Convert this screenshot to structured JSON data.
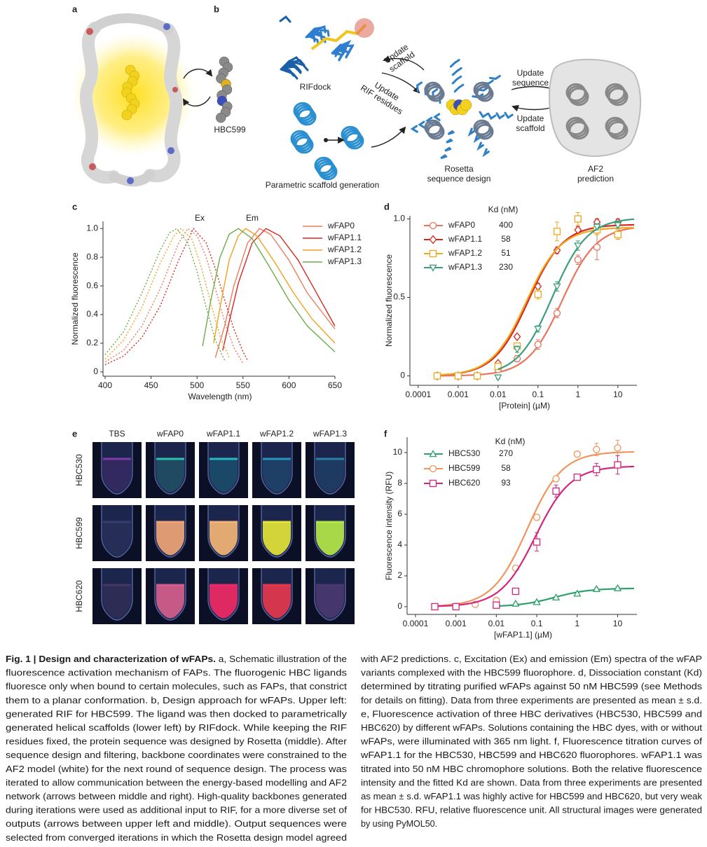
{
  "panels": {
    "a": {
      "label": "a",
      "ligand": "HBC599"
    },
    "b": {
      "label": "b",
      "rifdock": "RIFdock",
      "update_scaffold_left": [
        "Update",
        "scaffold"
      ],
      "update_rif": [
        "Update",
        "RIF residues"
      ],
      "parametric": "Parametric scaffold generation",
      "rosetta": [
        "Rosetta",
        "sequence design"
      ],
      "update_sequence": [
        "Update",
        "sequence"
      ],
      "update_scaffold_right": [
        "Update",
        "scaffold"
      ],
      "af2": [
        "AF2",
        "prediction"
      ]
    },
    "e": {
      "label": "e",
      "columns": [
        "TBS",
        "wFAP0",
        "wFAP1.1",
        "wFAP1.2",
        "wFAP1.3"
      ],
      "rows": [
        "HBC530",
        "HBC599",
        "HBC620"
      ],
      "tube_colors": [
        [
          "#8a3cb0",
          "#2fd0b8",
          "#22c8d0",
          "#2aa0c8",
          "#2a88b0"
        ],
        [
          "#3a4070",
          "#f4a878",
          "#f8b878",
          "#e8e838",
          "#b8ec48"
        ],
        [
          "#4a3a68",
          "#d8608e",
          "#f42a66",
          "#e8384e",
          "#4a3a70"
        ]
      ]
    }
  },
  "chart_data": [
    {
      "panel": "c",
      "type": "line",
      "xlabel": "Wavelength (nm)",
      "ylabel": "Normalized fluorescence",
      "annotations": [
        "Ex",
        "Em"
      ],
      "xlim": [
        400,
        650
      ],
      "xticks": [
        400,
        450,
        500,
        550,
        600,
        650
      ],
      "ylim": [
        -0.03,
        1.05
      ],
      "yticks": [
        0,
        0.2,
        0.4,
        0.6,
        0.8,
        {
          "value": 1,
          "label": "1.0"
        }
      ],
      "series": [
        {
          "name": "wFAP0",
          "color": "#ec7b60",
          "excitation": {
            "x": [
              400,
              420,
              440,
              460,
              480,
              490,
              500,
              510,
              520,
              530,
              540,
              550
            ],
            "values": [
              0.07,
              0.15,
              0.32,
              0.58,
              0.9,
              1.0,
              0.95,
              0.8,
              0.58,
              0.35,
              0.17,
              0.06
            ]
          },
          "emission": {
            "x": [
              520,
              530,
              540,
              555,
              568,
              580,
              600,
              620,
              650
            ],
            "values": [
              0.1,
              0.32,
              0.6,
              0.9,
              1.0,
              0.96,
              0.78,
              0.55,
              0.3
            ]
          }
        },
        {
          "name": "wFAP1.1",
          "color": "#d8281e",
          "excitation": {
            "x": [
              400,
              420,
              440,
              460,
              480,
              496,
              510,
              520,
              530,
              540,
              550,
              555
            ],
            "values": [
              0.05,
              0.11,
              0.24,
              0.46,
              0.78,
              1.0,
              0.9,
              0.72,
              0.5,
              0.3,
              0.14,
              0.08
            ]
          },
          "emission": {
            "x": [
              528,
              535,
              545,
              560,
              575,
              590,
              610,
              630,
              650
            ],
            "values": [
              0.15,
              0.35,
              0.62,
              0.9,
              1.0,
              0.95,
              0.78,
              0.55,
              0.32
            ]
          }
        },
        {
          "name": "wFAP1.2",
          "color": "#f2a11e",
          "excitation": {
            "x": [
              400,
              420,
              440,
              460,
              475,
              483,
              495,
              505,
              515,
              525,
              535
            ],
            "values": [
              0.09,
              0.22,
              0.45,
              0.76,
              0.95,
              1.0,
              0.92,
              0.72,
              0.48,
              0.25,
              0.1
            ]
          },
          "emission": {
            "x": [
              518,
              525,
              535,
              545,
              553,
              565,
              585,
              605,
              625,
              650
            ],
            "values": [
              0.2,
              0.45,
              0.78,
              0.95,
              1.0,
              0.95,
              0.76,
              0.55,
              0.37,
              0.2
            ]
          }
        },
        {
          "name": "wFAP1.3",
          "color": "#6aae4a",
          "excitation": {
            "x": [
              400,
              420,
              440,
              460,
              470,
              478,
              490,
              500,
              510,
              520,
              530
            ],
            "values": [
              0.12,
              0.28,
              0.55,
              0.85,
              0.97,
              1.0,
              0.9,
              0.7,
              0.45,
              0.22,
              0.08
            ]
          },
          "emission": {
            "x": [
              506,
              515,
              525,
              535,
              545,
              560,
              580,
              600,
              620,
              650
            ],
            "values": [
              0.18,
              0.5,
              0.8,
              0.96,
              1.0,
              0.93,
              0.72,
              0.5,
              0.32,
              0.14
            ]
          }
        }
      ]
    },
    {
      "panel": "d",
      "type": "scatter",
      "xlabel": "[Protein] (µM)",
      "ylabel": "Normalized fluorescence",
      "legend_title": "Kd (nM)",
      "log_x": true,
      "xlim": [
        7e-05,
        30
      ],
      "xticks": [
        0.0001,
        0.001,
        0.01,
        0.1,
        1,
        10
      ],
      "ylim": [
        -0.06,
        1.02
      ],
      "yticks": [
        0,
        0.5,
        {
          "value": 1,
          "label": "1.0"
        }
      ],
      "series": [
        {
          "name": "wFAP0",
          "color": "#e9735f",
          "marker": "circle",
          "kd": 400,
          "x": [
            0.0003,
            0.001,
            0.003,
            0.01,
            0.03,
            0.1,
            0.3,
            1,
            3,
            10
          ],
          "values": [
            0,
            0,
            0,
            0.04,
            0.11,
            0.2,
            0.4,
            0.74,
            0.82,
            0.9
          ],
          "errors": [
            0,
            0,
            0,
            0.01,
            0.02,
            0.03,
            0.03,
            0.03,
            0.08,
            0.03
          ]
        },
        {
          "name": "wFAP1.1",
          "color": "#d7261e",
          "marker": "diamond",
          "kd": 58,
          "x": [
            0.0003,
            0.001,
            0.003,
            0.01,
            0.03,
            0.1,
            0.3,
            1,
            3,
            10
          ],
          "values": [
            0,
            0,
            0,
            0.08,
            0.25,
            0.57,
            0.8,
            0.93,
            0.98,
            0.98
          ],
          "errors": [
            0,
            0,
            0,
            0.01,
            0.01,
            0.02,
            0.02,
            0.02,
            0.02,
            0.02
          ]
        },
        {
          "name": "wFAP1.2",
          "color": "#f0a81e",
          "marker": "square",
          "kd": 51,
          "x": [
            0.0003,
            0.001,
            0.003,
            0.01,
            0.03,
            0.1,
            0.3,
            1,
            3,
            10
          ],
          "values": [
            0,
            0,
            0,
            0.06,
            0.19,
            0.52,
            0.92,
            1.0,
            0.93,
            0.9
          ],
          "errors": [
            0,
            0,
            0,
            0.01,
            0.02,
            0.03,
            0.06,
            0.04,
            0.03,
            0.03
          ]
        },
        {
          "name": "wFAP1.3",
          "color": "#3f9e7a",
          "marker": "triangle-down",
          "kd": 230,
          "x": [
            0.01,
            0.03,
            0.1,
            0.3,
            1,
            3,
            10
          ],
          "values": [
            -0.01,
            0.17,
            0.3,
            0.57,
            0.83,
            0.95,
            0.96
          ],
          "errors": [
            0.01,
            0.02,
            0.02,
            0.03,
            0.03,
            0.02,
            0.02
          ]
        }
      ]
    },
    {
      "panel": "f",
      "type": "scatter",
      "xlabel": "[wFAP1.1] (µM)",
      "ylabel": "Fluorescence intensity (RFU)",
      "legend_title": "Kd (nM)",
      "log_x": true,
      "xlim": [
        7e-05,
        30
      ],
      "xticks": [
        0.0001,
        0.001,
        0.01,
        0.1,
        1,
        10
      ],
      "ylim": [
        -0.5,
        11
      ],
      "yticks": [
        0,
        2,
        4,
        6,
        8,
        10
      ],
      "series": [
        {
          "name": "HBC530",
          "color": "#2ea06a",
          "marker": "triangle-up",
          "kd": 270,
          "x": [
            0.01,
            0.03,
            0.1,
            0.3,
            1,
            3,
            10
          ],
          "values": [
            0.15,
            0.2,
            0.3,
            0.6,
            0.85,
            1.15,
            1.2
          ],
          "errors": [
            0.03,
            0.03,
            0.05,
            0.05,
            0.05,
            0.08,
            0.08
          ]
        },
        {
          "name": "HBC599",
          "color": "#f0955f",
          "marker": "circle",
          "kd": 58,
          "x": [
            0.0003,
            0.001,
            0.003,
            0.01,
            0.03,
            0.1,
            0.3,
            1,
            3,
            10
          ],
          "values": [
            0,
            0.03,
            0.15,
            0.4,
            2.5,
            5.8,
            8.3,
            9.9,
            10.2,
            10.3
          ],
          "errors": [
            0,
            0,
            0,
            0,
            0.05,
            0.2,
            0.2,
            0.1,
            0.4,
            0.5
          ]
        },
        {
          "name": "HBC620",
          "color": "#d3267d",
          "marker": "square",
          "kd": 93,
          "x": [
            0.0003,
            0.001,
            0.01,
            0.03,
            0.1,
            0.3,
            1,
            3,
            10
          ],
          "values": [
            0,
            0,
            0.1,
            1.0,
            4.2,
            7.5,
            8.4,
            8.9,
            9.2
          ],
          "errors": [
            0,
            0,
            0,
            0.1,
            0.6,
            0.4,
            0.15,
            0.4,
            0.6
          ]
        }
      ]
    }
  ],
  "caption": {
    "title": "Fig. 1 | Design and characterization of wFAPs.",
    "left": [
      " a, Schematic illustration of the",
      "fluorescence activation mechanism of FAPs. The fluorogenic HBC ligands",
      "fluoresce only when bound to certain molecules, such as FAPs, that constrict",
      "them to a planar conformation. b, Design approach for wFAPs. Upper left:",
      "generated RIF for HBC599. The ligand was then docked to parametrically",
      "generated helical scaffolds (lower left) by RIFdock. While keeping the RIF",
      "residues fixed, the protein sequence was designed by Rosetta (middle). After",
      "sequence design and filtering, backbone coordinates were constrained to the",
      "AF2 model (white) for the next round of sequence design. The process was",
      "iterated to allow communication between the energy-based modelling and AF2",
      "network (arrows between middle and right). High-quality backbones generated",
      "during iterations were used as additional input to RIF, for a more diverse set of",
      "outputs (arrows between upper left and middle). Output sequences were",
      "selected from converged iterations in which the Rosetta design model agreed"
    ],
    "right": [
      "with AF2 predictions. c, Excitation (Ex) and emission (Em) spectra of the wFAP",
      "variants complexed with the HBC599 fluorophore. d, Dissociation constant (Kd)",
      "determined by titrating purified wFAPs against 50 nM HBC599 (see Methods",
      "for details on fitting). Data from three experiments are presented as mean ± s.d.",
      "e, Fluorescence activation of three HBC derivatives (HBC530, HBC599 and",
      "HBC620) by different wFAPs. Solutions containing the HBC dyes, with or without",
      "wFAPs, were illuminated with 365 nm light. f, Fluorescence titration curves of",
      "wFAP1.1 for the HBC530, HBC599 and HBC620 fluorophores. wFAP1.1 was",
      "titrated into 50 nM HBC chromophore solutions. Both the relative fluorescence",
      "intensity and the fitted Kd are shown. Data from three experiments are presented",
      "as mean ± s.d. wFAP1.1 was highly active for HBC599 and HBC620, but very weak",
      "for HBC530. RFU, relative fluorescence unit. All structural images were generated",
      "by using PyMOL50."
    ]
  }
}
